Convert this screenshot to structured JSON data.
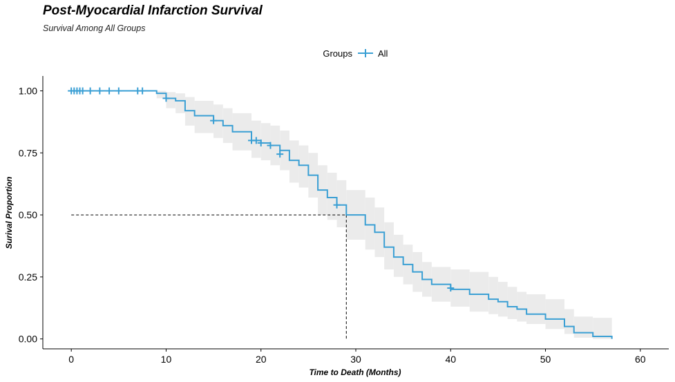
{
  "chart_data": {
    "type": "line",
    "title": "Post-Myocardial Infarction Survival",
    "subtitle": "Survival Among All Groups",
    "xlabel": "Time to Death (Months)",
    "ylabel": "Surival Proportion",
    "xlim": [
      -3,
      63
    ],
    "ylim": [
      -0.04,
      1.06
    ],
    "x_ticks": [
      0,
      10,
      20,
      30,
      40,
      50,
      60
    ],
    "y_ticks": [
      0.0,
      0.25,
      0.5,
      0.75,
      1.0
    ],
    "y_tick_labels": [
      "0.00",
      "0.25",
      "0.50",
      "0.75",
      "1.00"
    ],
    "grid": false,
    "legend": {
      "title": "Groups",
      "position": "top",
      "entries": [
        "All"
      ]
    },
    "colors": {
      "series": "#3a9fd4",
      "ci_band": "#ebebeb",
      "reference": "#000000"
    },
    "median_survival": {
      "x": 29,
      "y": 0.5
    },
    "series": [
      {
        "name": "All",
        "steps": [
          {
            "x": 0,
            "y": 1.0,
            "lo": 1.0,
            "hi": 1.0
          },
          {
            "x": 9,
            "y": 0.99,
            "lo": 0.97,
            "hi": 1.0
          },
          {
            "x": 10,
            "y": 0.97,
            "lo": 0.93,
            "hi": 0.995
          },
          {
            "x": 11,
            "y": 0.96,
            "lo": 0.91,
            "hi": 0.99
          },
          {
            "x": 12,
            "y": 0.92,
            "lo": 0.86,
            "hi": 0.975
          },
          {
            "x": 13,
            "y": 0.9,
            "lo": 0.83,
            "hi": 0.96
          },
          {
            "x": 15,
            "y": 0.88,
            "lo": 0.81,
            "hi": 0.945
          },
          {
            "x": 16,
            "y": 0.86,
            "lo": 0.79,
            "hi": 0.93
          },
          {
            "x": 17,
            "y": 0.835,
            "lo": 0.76,
            "hi": 0.91
          },
          {
            "x": 19,
            "y": 0.8,
            "lo": 0.73,
            "hi": 0.88
          },
          {
            "x": 20,
            "y": 0.79,
            "lo": 0.72,
            "hi": 0.87
          },
          {
            "x": 21,
            "y": 0.78,
            "lo": 0.7,
            "hi": 0.86
          },
          {
            "x": 22,
            "y": 0.76,
            "lo": 0.68,
            "hi": 0.84
          },
          {
            "x": 23,
            "y": 0.72,
            "lo": 0.63,
            "hi": 0.8
          },
          {
            "x": 24,
            "y": 0.7,
            "lo": 0.61,
            "hi": 0.78
          },
          {
            "x": 25,
            "y": 0.66,
            "lo": 0.57,
            "hi": 0.75
          },
          {
            "x": 26,
            "y": 0.6,
            "lo": 0.5,
            "hi": 0.7
          },
          {
            "x": 27,
            "y": 0.57,
            "lo": 0.48,
            "hi": 0.67
          },
          {
            "x": 28,
            "y": 0.54,
            "lo": 0.45,
            "hi": 0.64
          },
          {
            "x": 29,
            "y": 0.5,
            "lo": 0.4,
            "hi": 0.6
          },
          {
            "x": 31,
            "y": 0.46,
            "lo": 0.36,
            "hi": 0.57
          },
          {
            "x": 32,
            "y": 0.43,
            "lo": 0.33,
            "hi": 0.53
          },
          {
            "x": 33,
            "y": 0.37,
            "lo": 0.28,
            "hi": 0.47
          },
          {
            "x": 34,
            "y": 0.33,
            "lo": 0.25,
            "hi": 0.42
          },
          {
            "x": 35,
            "y": 0.3,
            "lo": 0.22,
            "hi": 0.38
          },
          {
            "x": 36,
            "y": 0.27,
            "lo": 0.19,
            "hi": 0.35
          },
          {
            "x": 37,
            "y": 0.24,
            "lo": 0.17,
            "hi": 0.31
          },
          {
            "x": 38,
            "y": 0.22,
            "lo": 0.15,
            "hi": 0.29
          },
          {
            "x": 40,
            "y": 0.2,
            "lo": 0.13,
            "hi": 0.28
          },
          {
            "x": 42,
            "y": 0.18,
            "lo": 0.11,
            "hi": 0.27
          },
          {
            "x": 44,
            "y": 0.16,
            "lo": 0.1,
            "hi": 0.25
          },
          {
            "x": 45,
            "y": 0.15,
            "lo": 0.09,
            "hi": 0.23
          },
          {
            "x": 46,
            "y": 0.13,
            "lo": 0.08,
            "hi": 0.21
          },
          {
            "x": 47,
            "y": 0.12,
            "lo": 0.07,
            "hi": 0.19
          },
          {
            "x": 48,
            "y": 0.1,
            "lo": 0.06,
            "hi": 0.18
          },
          {
            "x": 50,
            "y": 0.08,
            "lo": 0.04,
            "hi": 0.16
          },
          {
            "x": 52,
            "y": 0.05,
            "lo": 0.02,
            "hi": 0.12
          },
          {
            "x": 53,
            "y": 0.025,
            "lo": 0.005,
            "hi": 0.09
          },
          {
            "x": 55,
            "y": 0.01,
            "lo": 0.0,
            "hi": 0.085
          },
          {
            "x": 57,
            "y": 0.0,
            "lo": 0.0,
            "hi": 0.085
          }
        ],
        "censored": [
          {
            "x": 0,
            "y": 1.0
          },
          {
            "x": 0.3,
            "y": 1.0
          },
          {
            "x": 0.6,
            "y": 1.0
          },
          {
            "x": 0.9,
            "y": 1.0
          },
          {
            "x": 1.2,
            "y": 1.0
          },
          {
            "x": 2,
            "y": 1.0
          },
          {
            "x": 3,
            "y": 1.0
          },
          {
            "x": 4,
            "y": 1.0
          },
          {
            "x": 5,
            "y": 1.0
          },
          {
            "x": 7,
            "y": 1.0
          },
          {
            "x": 7.5,
            "y": 1.0
          },
          {
            "x": 10,
            "y": 0.97
          },
          {
            "x": 15,
            "y": 0.88
          },
          {
            "x": 19,
            "y": 0.8
          },
          {
            "x": 19.5,
            "y": 0.8
          },
          {
            "x": 20,
            "y": 0.79
          },
          {
            "x": 21,
            "y": 0.78
          },
          {
            "x": 22,
            "y": 0.745
          },
          {
            "x": 28,
            "y": 0.54
          },
          {
            "x": 40,
            "y": 0.205
          }
        ]
      }
    ]
  }
}
